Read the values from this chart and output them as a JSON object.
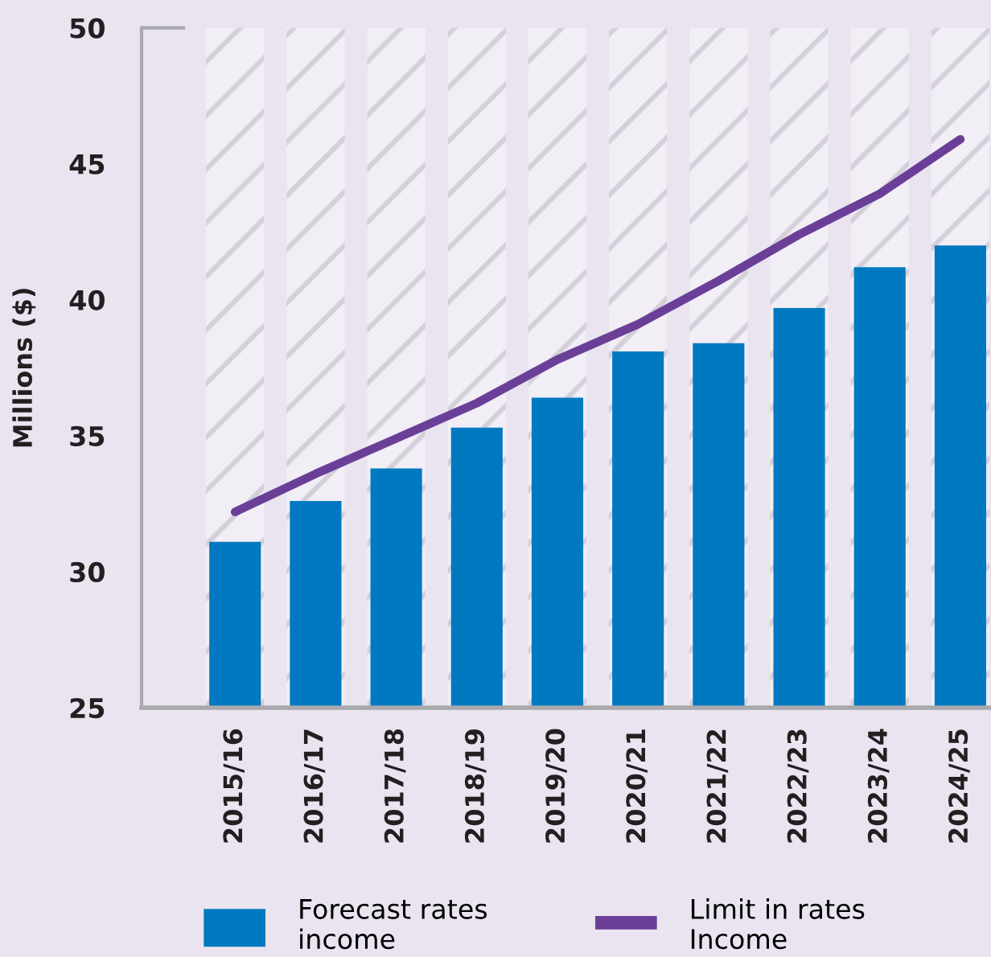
{
  "chart_data": {
    "type": "bar",
    "ylabel": "Millions ($)",
    "categories": [
      "2015/16",
      "2016/17",
      "2017/18",
      "2018/19",
      "2019/20",
      "2020/21",
      "2021/22",
      "2022/23",
      "2023/24",
      "2024/25"
    ],
    "series": [
      {
        "color": "#f1eef6",
        "values": [
          50,
          50,
          50,
          50,
          50,
          50,
          50,
          50,
          50,
          50
        ]
      },
      {
        "name": "Forecast rates\nincome",
        "color": "#0079c1",
        "values": [
          31.1,
          32.6,
          33.8,
          35.3,
          36.4,
          38.1,
          38.4,
          39.7,
          41.2,
          42.0
        ]
      },
      {
        "type": "line",
        "name": "Limit in rates\nIncome",
        "color": "#6b3f98",
        "values": [
          32.2,
          33.6,
          34.9,
          36.2,
          37.8,
          39.1,
          40.7,
          42.4,
          43.9,
          45.9
        ]
      }
    ],
    "ylim": [
      25,
      50
    ],
    "yticks": [
      25,
      30,
      35,
      40,
      45,
      50
    ],
    "legend": "bottom",
    "line_style": "solid"
  }
}
